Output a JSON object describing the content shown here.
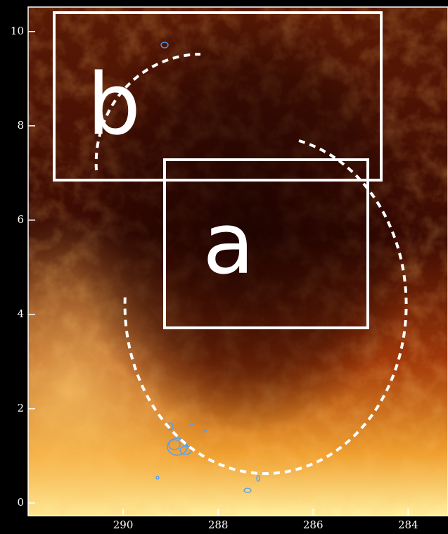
{
  "chart_data": {
    "type": "image",
    "xlim": [
      292,
      283.16
    ],
    "xticks": [
      290,
      288,
      286,
      284
    ],
    "ylim": [
      -0.27,
      10.52
    ],
    "yticks": [
      0,
      2,
      4,
      6,
      8,
      10
    ],
    "annotations": [
      "a",
      "b"
    ]
  }
}
